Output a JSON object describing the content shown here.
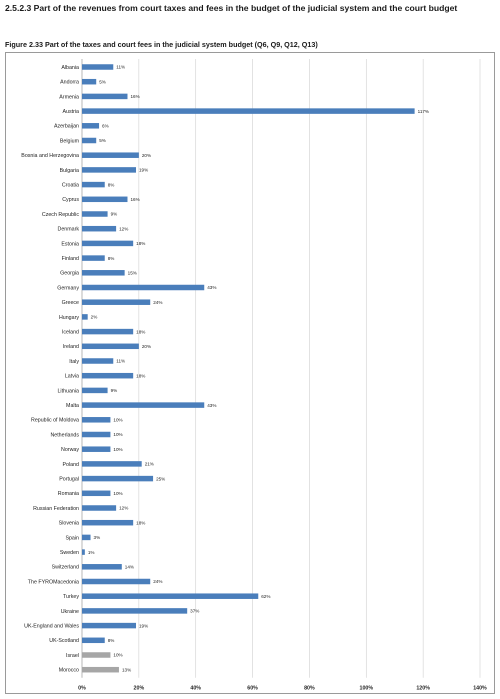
{
  "heading": "2.5.2.3 Part of the revenues from court taxes and fees in the budget of the judicial system and the court budget",
  "caption": "Figure 2.33 Part of the taxes and court fees in the judicial system budget (Q6, Q9, Q12, Q13)",
  "colors": {
    "bar": "#4a7ebb",
    "bar_other": "#a6a6a6",
    "grid": "#d0d0d0",
    "axis": "#888888"
  },
  "chart_data": {
    "type": "bar",
    "orientation": "horizontal",
    "title": "Figure 2.33 Part of the taxes and court fees in the judicial system budget (Q6, Q9, Q12, Q13)",
    "xlabel": "",
    "ylabel": "",
    "xlim": [
      0,
      140
    ],
    "grid": true,
    "x_ticks": [
      "0%",
      "20%",
      "40%",
      "60%",
      "80%",
      "100%",
      "120%",
      "140%"
    ],
    "categories": [
      "Albania",
      "Andorra",
      "Armenia",
      "Austria",
      "Azerbaijan",
      "Belgium",
      "Bosnia and Herzegovina",
      "Bulgaria",
      "Croatia",
      "Cyprus",
      "Czech Republic",
      "Denmark",
      "Estonia",
      "Finland",
      "Georgia",
      "Germany",
      "Greece",
      "Hungary",
      "Iceland",
      "Ireland",
      "Italy",
      "Latvia",
      "Lithuania",
      "Malta",
      "Republic of Moldova",
      "Netherlands",
      "Norway",
      "Poland",
      "Portugal",
      "Romania",
      "Russian Federation",
      "Slovenia",
      "Spain",
      "Sweden",
      "Switzerland",
      "The FYROMacedonia",
      "Turkey",
      "Ukraine",
      "UK-England and Wales",
      "UK-Scotland",
      "Israel",
      "Morocco"
    ],
    "values": [
      11,
      5,
      16,
      117,
      6,
      5,
      20,
      19,
      8,
      16,
      9,
      12,
      18,
      8,
      15,
      43,
      24,
      2,
      18,
      20,
      11,
      18,
      9,
      43,
      10,
      10,
      10,
      21,
      25,
      10,
      12,
      18,
      3,
      1,
      14,
      24,
      62,
      37,
      19,
      8,
      10,
      13
    ],
    "value_labels": [
      "11%",
      "5%",
      "16%",
      "117%",
      "6%",
      "5%",
      "20%",
      "19%",
      "8%",
      "16%",
      "9%",
      "12%",
      "18%",
      "8%",
      "15%",
      "43%",
      "24%",
      "2%",
      "18%",
      "20%",
      "11%",
      "18%",
      "9%",
      "43%",
      "10%",
      "10%",
      "10%",
      "21%",
      "25%",
      "10%",
      "12%",
      "18%",
      "3%",
      "1%",
      "14%",
      "24%",
      "62%",
      "37%",
      "19%",
      "8%",
      "10%",
      "13%"
    ],
    "highlight": [
      "Israel",
      "Morocco"
    ]
  }
}
